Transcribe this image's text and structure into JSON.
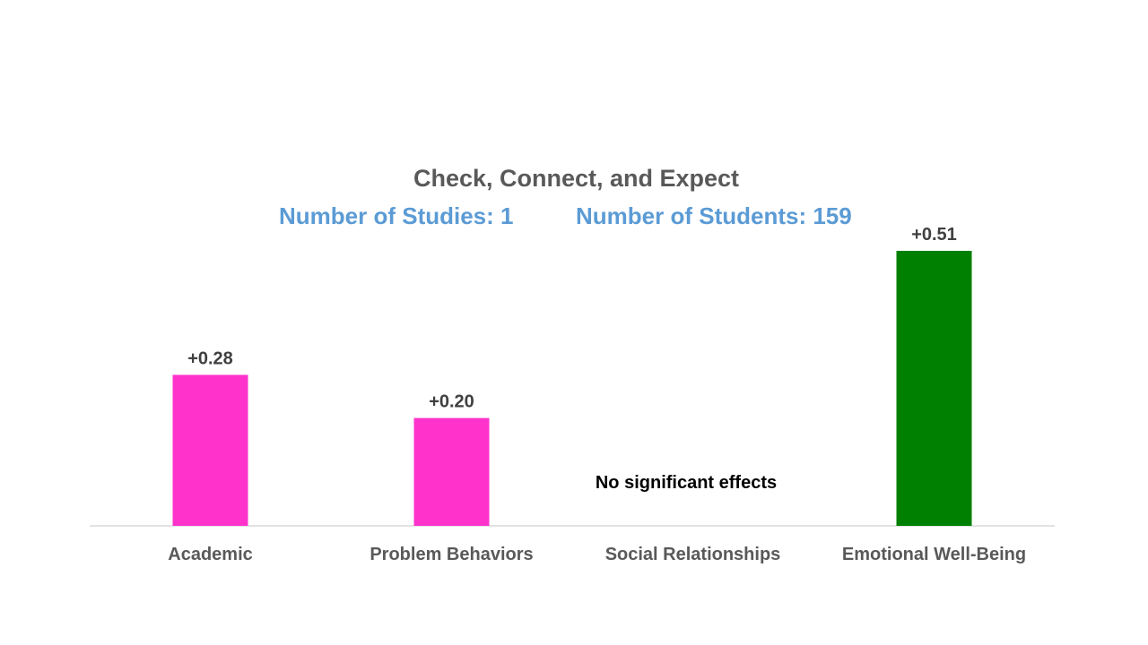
{
  "colors": {
    "negative_or_small": "#ff33cc",
    "significant": "#008000",
    "axis": "#d9d9d9",
    "title": "#595959",
    "subtitle": "#5b9bd5",
    "data_label": "#404040",
    "tick_label": "#595959"
  },
  "chart_data": {
    "type": "bar",
    "title": "Check, Connect, and Expect",
    "subtitle": {
      "studies": "Number of Studies: 1",
      "students": "Number of Students: 159"
    },
    "categories": [
      "Academic",
      "Problem Behaviors",
      "Social Relationships",
      "Emotional Well-Being"
    ],
    "values": [
      0.28,
      0.2,
      null,
      0.51
    ],
    "data_labels": [
      "+0.28",
      "+0.20",
      "",
      "+0.51"
    ],
    "bar_colors": [
      "#ff33cc",
      "#ff33cc",
      null,
      "#008000"
    ],
    "annotation": "No significant effects",
    "ylim": [
      0,
      0.51
    ],
    "grid": false,
    "legend": "none"
  }
}
